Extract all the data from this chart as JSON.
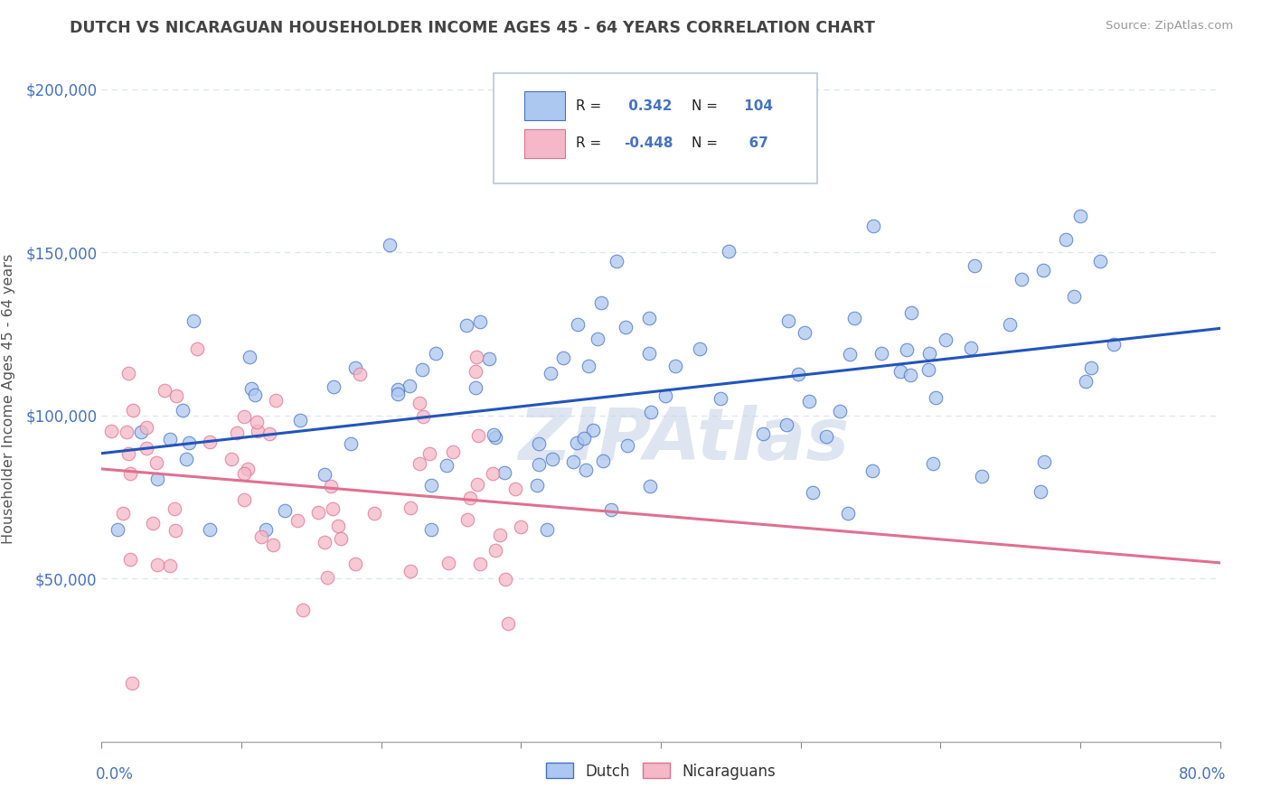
{
  "title": "DUTCH VS NICARAGUAN HOUSEHOLDER INCOME AGES 45 - 64 YEARS CORRELATION CHART",
  "source": "Source: ZipAtlas.com",
  "ylabel": "Householder Income Ages 45 - 64 years",
  "R_dutch": 0.342,
  "N_dutch": 104,
  "R_nicaraguan": -0.448,
  "N_nicaraguan": 67,
  "dutch_color": "#adc8f0",
  "dutch_edge_color": "#4472c4",
  "dutch_line_color": "#2255bb",
  "nicaraguan_color": "#f4b8c8",
  "nicaraguan_edge_color": "#e07090",
  "nicaraguan_line_color": "#e07090",
  "watermark_color": "#c8d4e8",
  "xmin": 0.0,
  "xmax": 0.8,
  "ymin": 0,
  "ymax": 210000,
  "y_ticks": [
    0,
    50000,
    100000,
    150000,
    200000
  ],
  "y_tick_labels": [
    "",
    "$50,000",
    "$100,000",
    "$150,000",
    "$200,000"
  ],
  "background_color": "#ffffff",
  "title_color": "#444444",
  "axis_label_color": "#4472c4",
  "grid_color": "#dde4f0",
  "tick_color": "#888888"
}
